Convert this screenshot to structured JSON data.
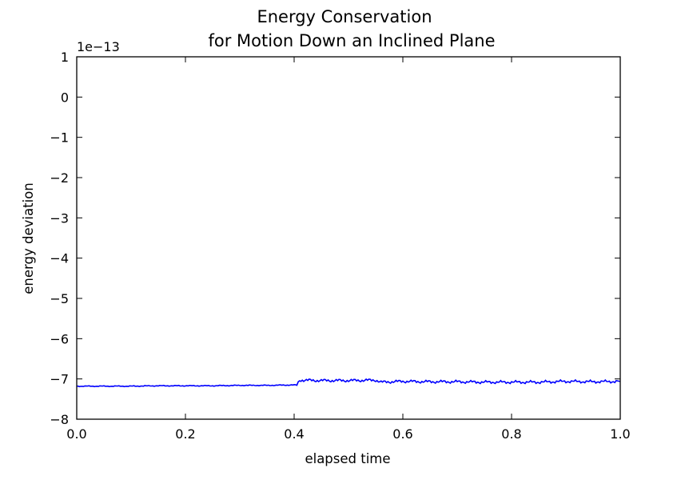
{
  "chart_data": {
    "type": "line",
    "title_lines": [
      "Energy Conservation",
      "for Motion Down an Inclined Plane"
    ],
    "xlabel": "elapsed time",
    "ylabel": "energy deviation",
    "y_offset_label": "1e−13",
    "xlim": [
      0.0,
      1.0
    ],
    "ylim": [
      -8,
      1
    ],
    "x_ticks": [
      0.0,
      0.2,
      0.4,
      0.6,
      0.8,
      1.0
    ],
    "x_tick_labels": [
      "0.0",
      "0.2",
      "0.4",
      "0.6",
      "0.8",
      "1.0"
    ],
    "y_ticks": [
      1,
      0,
      -1,
      -2,
      -3,
      -4,
      -5,
      -6,
      -7,
      -8
    ],
    "y_tick_labels": [
      "1",
      "0",
      "−1",
      "−2",
      "−3",
      "−4",
      "−5",
      "−6",
      "−7",
      "−8"
    ],
    "grid": false,
    "series": [
      {
        "color": "#0000ff",
        "x": [
          0.0,
          0.05,
          0.1,
          0.15,
          0.2,
          0.25,
          0.3,
          0.35,
          0.4,
          0.405,
          0.41,
          0.45,
          0.5,
          0.55,
          0.56,
          0.6,
          0.65,
          0.7,
          0.75,
          0.8,
          0.85,
          0.9,
          0.95,
          1.0
        ],
        "y": [
          -7.18,
          -7.18,
          -7.18,
          -7.17,
          -7.17,
          -7.17,
          -7.16,
          -7.16,
          -7.15,
          -7.15,
          -7.03,
          -7.04,
          -7.04,
          -7.03,
          -7.08,
          -7.06,
          -7.07,
          -7.07,
          -7.08,
          -7.08,
          -7.08,
          -7.06,
          -7.07,
          -7.06
        ]
      }
    ]
  }
}
